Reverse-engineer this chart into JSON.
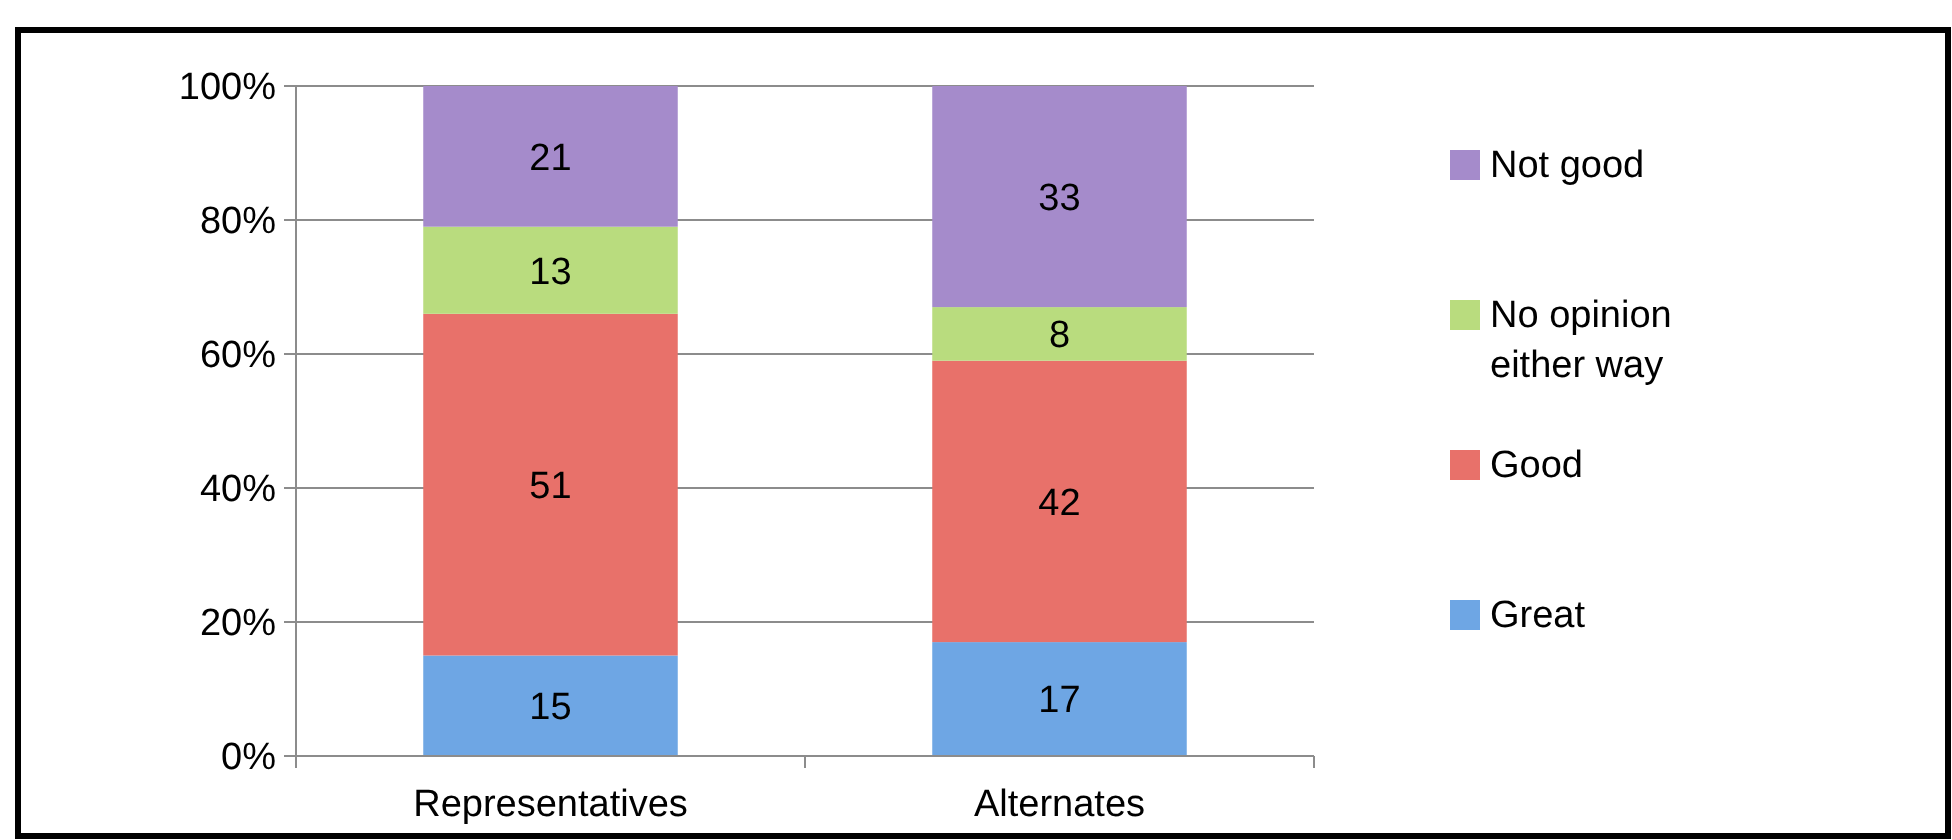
{
  "chart_data": {
    "type": "bar",
    "stacked": true,
    "categories": [
      "Representatives",
      "Alternates"
    ],
    "series": [
      {
        "name": "Great",
        "color": "#6ea6e4",
        "values": [
          15,
          17
        ]
      },
      {
        "name": "Good",
        "color": "#e8716a",
        "values": [
          51,
          42
        ]
      },
      {
        "name": "No opinion either way",
        "color": "#b9dc7e",
        "values": [
          13,
          8
        ]
      },
      {
        "name": "Not good",
        "color": "#a58bcb",
        "values": [
          21,
          33
        ]
      }
    ],
    "ylim": [
      0,
      100
    ],
    "yticks": [
      {
        "value": 0,
        "label": "0%"
      },
      {
        "value": 20,
        "label": "20%"
      },
      {
        "value": 40,
        "label": "40%"
      },
      {
        "value": 60,
        "label": "60%"
      },
      {
        "value": 80,
        "label": "80%"
      },
      {
        "value": 100,
        "label": "100%"
      }
    ],
    "grid": "y",
    "legend": "right",
    "data_labels": true
  }
}
